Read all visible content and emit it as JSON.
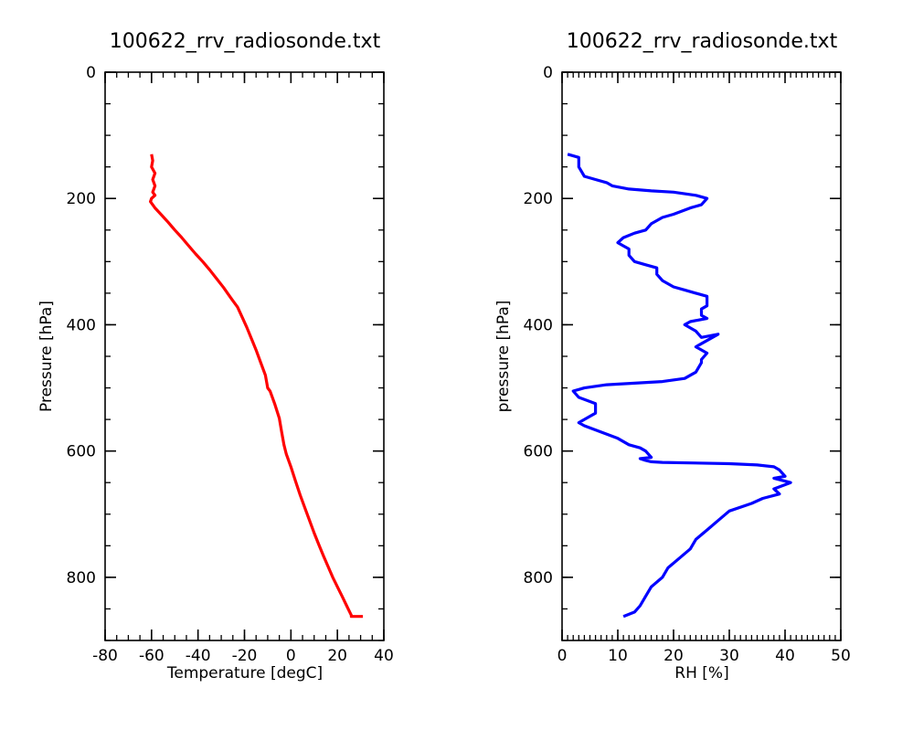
{
  "chart_data": [
    {
      "type": "line",
      "title": "100622_rrv_radiosonde.txt",
      "xlabel": "Temperature [degC]",
      "ylabel": "Pressure [hPa]",
      "xlim": [
        -80,
        40
      ],
      "ylim": [
        900,
        0
      ],
      "y_inverted": true,
      "xticks": [
        -80,
        -60,
        -40,
        -20,
        0,
        20,
        40
      ],
      "yticks": [
        0,
        200,
        400,
        600,
        800
      ],
      "grid": false,
      "series": [
        {
          "color": "#ff0000",
          "x": [
            -60,
            -59.5,
            -60,
            -58.5,
            -59.5,
            -58.5,
            -59.5,
            -58.5,
            -60,
            -60.5,
            -60.5,
            -58.5,
            -56,
            -53,
            -50,
            -47,
            -44,
            -41,
            -38,
            -35,
            -32,
            -29,
            -26,
            -23,
            -21,
            -19,
            -17,
            -15,
            -13,
            -11,
            -10,
            -9,
            -7,
            -5,
            -4,
            -3,
            -2,
            0,
            2,
            4,
            6,
            8,
            10,
            12,
            14,
            16,
            18,
            20,
            22,
            24,
            26,
            26,
            31
          ],
          "y": [
            130,
            140,
            150,
            160,
            170,
            180,
            190,
            195,
            200,
            205,
            205,
            215,
            225,
            237,
            250,
            262,
            275,
            288,
            300,
            313,
            327,
            341,
            357,
            372,
            388,
            404,
            422,
            440,
            460,
            480,
            500,
            505,
            525,
            548,
            570,
            590,
            605,
            625,
            648,
            670,
            690,
            710,
            730,
            748,
            766,
            783,
            800,
            815,
            830,
            845,
            860,
            862,
            862
          ]
        }
      ]
    },
    {
      "type": "line",
      "title": "100622_rrv_radiosonde.txt",
      "xlabel": "RH [%]",
      "ylabel": "pressure [hPa]",
      "xlim": [
        0,
        50
      ],
      "ylim": [
        900,
        0
      ],
      "y_inverted": true,
      "xticks": [
        0,
        10,
        20,
        30,
        40,
        50
      ],
      "yticks": [
        0,
        200,
        400,
        600,
        800
      ],
      "grid": false,
      "series": [
        {
          "color": "#0000ff",
          "x": [
            1,
            3,
            3,
            4,
            6,
            8,
            9,
            12,
            16,
            20,
            24,
            26,
            25,
            23,
            20,
            18,
            16,
            15,
            13,
            11,
            10,
            11,
            12,
            12,
            13,
            15,
            17,
            17,
            18,
            20,
            22,
            24,
            26,
            26,
            25,
            25,
            26,
            23,
            22,
            24,
            25,
            28,
            26,
            24,
            26,
            25,
            25,
            24,
            22,
            18,
            8,
            4,
            2,
            3,
            6,
            6,
            4,
            3,
            4,
            7,
            10,
            12,
            14,
            15,
            16,
            14,
            15,
            16,
            18,
            30,
            35,
            38,
            39,
            40,
            38,
            41,
            38,
            39,
            36,
            34,
            30,
            28,
            26,
            24,
            23,
            21,
            19,
            18,
            16,
            15,
            14,
            13,
            11
          ],
          "y": [
            130,
            135,
            150,
            165,
            170,
            175,
            180,
            185,
            188,
            190,
            195,
            200,
            210,
            215,
            225,
            230,
            240,
            250,
            255,
            262,
            270,
            275,
            280,
            290,
            300,
            305,
            310,
            320,
            330,
            340,
            345,
            350,
            355,
            370,
            375,
            385,
            390,
            395,
            400,
            410,
            420,
            415,
            425,
            435,
            445,
            455,
            460,
            475,
            485,
            490,
            495,
            500,
            505,
            515,
            525,
            540,
            550,
            555,
            560,
            570,
            580,
            590,
            595,
            600,
            610,
            612,
            615,
            617,
            618,
            620,
            622,
            625,
            630,
            640,
            643,
            650,
            660,
            668,
            675,
            683,
            695,
            710,
            725,
            740,
            755,
            770,
            785,
            800,
            815,
            830,
            845,
            855,
            862
          ]
        }
      ]
    }
  ]
}
